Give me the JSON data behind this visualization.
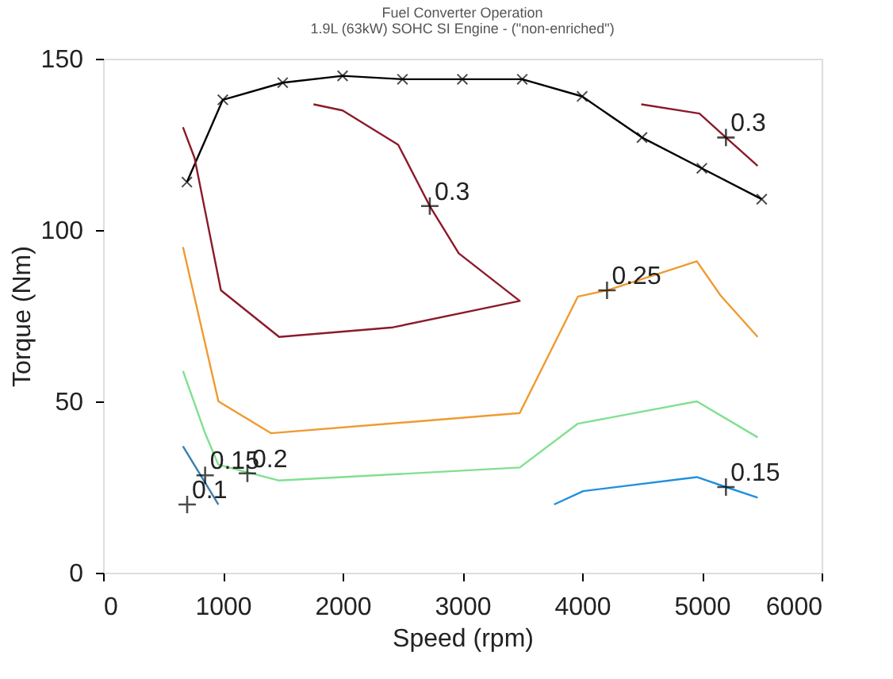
{
  "chart_data": {
    "type": "line",
    "title": "Fuel Converter Operation",
    "subtitle": "1.9L (63kW) SOHC SI Engine - (\"non-enriched\")",
    "xlabel": "Speed (rpm)",
    "ylabel": "Torque (Nm)",
    "xlim": [
      0,
      6000
    ],
    "xticks": [
      0,
      1000,
      2000,
      3000,
      4000,
      5000,
      6000
    ],
    "ylim": [
      0,
      150
    ],
    "yticks": [
      0,
      50,
      100,
      150
    ],
    "grid": false,
    "line_style": "solid",
    "series": [
      {
        "color": "#000000",
        "marker": "cross",
        "x": [
          700,
          1000,
          1500,
          2000,
          2500,
          3000,
          3500,
          4000,
          4500,
          5000,
          5500
        ],
        "values": [
          114,
          138,
          143,
          145,
          144,
          144,
          144,
          139,
          127,
          118,
          109
        ]
      },
      {
        "color": "#8b1a2a",
        "marker": "none",
        "x": [
          1757,
          2000,
          2464,
          2728,
          2970,
          3479,
          2420,
          1470,
          984,
          764,
          667
        ],
        "values": [
          136.7,
          134.9,
          124.9,
          107,
          93.2,
          79.3,
          71.6,
          68.8,
          82.4,
          121,
          130
        ]
      },
      {
        "color": "#8b1a2a",
        "marker": "none",
        "x": [
          4494,
          4980,
          5201,
          5466
        ],
        "values": [
          136.7,
          134,
          127,
          118.7
        ]
      },
      {
        "color": "#f09a30",
        "marker": "none",
        "x": [
          667,
          963,
          1404,
          3479,
          3965,
          4208,
          4958,
          5156,
          5466
        ],
        "values": [
          95,
          50,
          40.7,
          46.6,
          80.6,
          82.4,
          90.9,
          80.9,
          68.8
        ]
      },
      {
        "color": "#80e090",
        "marker": "none",
        "x": [
          667,
          852,
          963,
          1470,
          3479,
          3965,
          4958,
          5466
        ],
        "values": [
          58.9,
          40.7,
          31.5,
          26.9,
          30.7,
          43.5,
          50,
          39.5
        ]
      },
      {
        "color": "#2090e0",
        "marker": "none",
        "x": [
          3766,
          4009,
          4958,
          5201,
          5466
        ],
        "values": [
          19.9,
          23.8,
          27.9,
          25,
          21.9
        ]
      },
      {
        "color": "#3a80b0",
        "marker": "none",
        "x": [
          667,
          963
        ],
        "values": [
          36.9,
          19.9
        ]
      }
    ],
    "annotations": [
      {
        "text": "0.3",
        "x": 2728,
        "y": 107
      },
      {
        "text": "0.3",
        "x": 5201,
        "y": 127
      },
      {
        "text": "0.25",
        "x": 4208,
        "y": 82.4
      },
      {
        "text": "0.2",
        "x": 1205,
        "y": 29
      },
      {
        "text": "0.15",
        "x": 852,
        "y": 28.4
      },
      "0.1",
      {
        "text": "0.15",
        "x": 5201,
        "y": 25
      }
    ]
  }
}
